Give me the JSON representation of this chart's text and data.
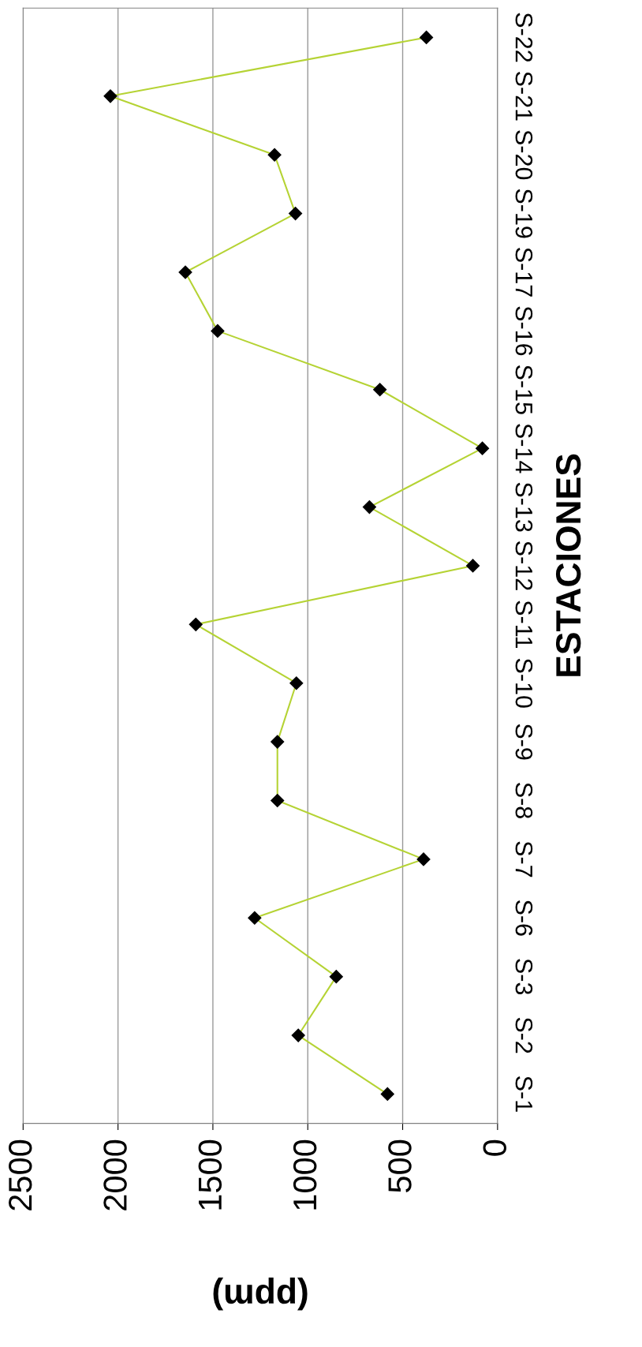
{
  "chart_data": {
    "type": "line",
    "orientation": "horizontal",
    "xlabel": "(ppm)",
    "ylabel": "ESTACIONES",
    "categories": [
      "S-22",
      "S-21",
      "S-20",
      "S-19",
      "S-17",
      "S-16",
      "S-15",
      "S-14",
      "S-13",
      "S-12",
      "S-11",
      "S-10",
      "S-9",
      "S-8",
      "S-7",
      "S-6",
      "S-3",
      "S-2",
      "S-1"
    ],
    "series": [
      {
        "color": "#b5d334",
        "values": [
          375,
          2040,
          1175,
          1065,
          1645,
          1475,
          620,
          80,
          675,
          130,
          1590,
          1060,
          1160,
          1160,
          390,
          1280,
          850,
          1050,
          580
        ]
      }
    ],
    "xlim": [
      2500,
      0
    ],
    "xticks": [
      2500,
      2000,
      1500,
      1000,
      500,
      0
    ],
    "grid": "x",
    "marker": "diamond",
    "line_style": "solid"
  }
}
